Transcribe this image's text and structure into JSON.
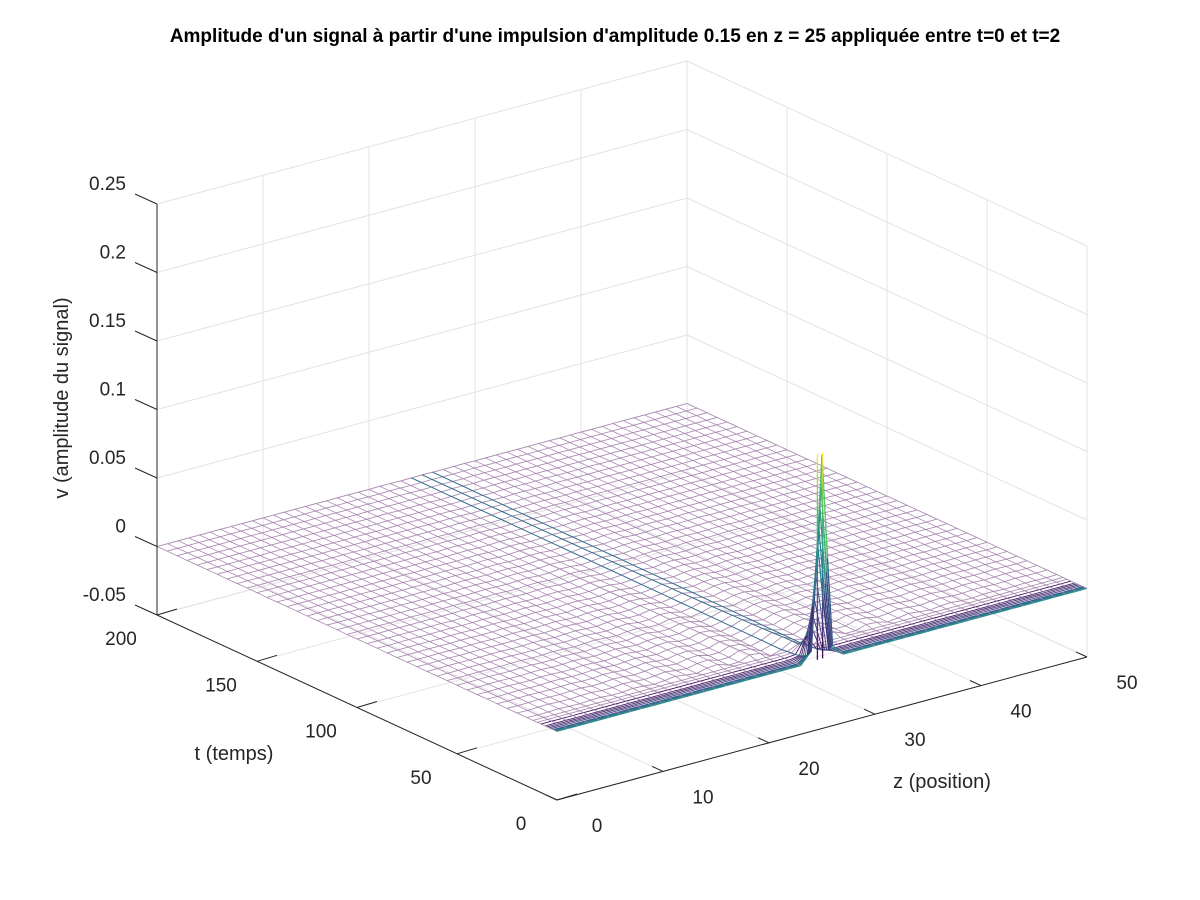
{
  "chart_data": {
    "type": "surface-mesh",
    "title": "Amplitude d'un signal à partir d'une impulsion d'amplitude 0.15 en z = 25 appliquée entre t=0 et t=2",
    "xlabel": "z (position)",
    "ylabel": "t (temps)",
    "zlabel": "v (amplitude du signal)",
    "xlim": [
      0,
      50
    ],
    "ylim": [
      0,
      200
    ],
    "zlim": [
      -0.05,
      0.25
    ],
    "xticks": [
      0,
      10,
      20,
      30,
      40,
      50
    ],
    "yticks": [
      0,
      50,
      100,
      150,
      200
    ],
    "zticks": [
      -0.05,
      0,
      0.05,
      0.1,
      0.15,
      0.2,
      0.25
    ],
    "xtick_labels": [
      "0",
      "10",
      "20",
      "30",
      "40",
      "50"
    ],
    "ytick_labels": [
      "0",
      "50",
      "100",
      "150",
      "200"
    ],
    "ztick_labels": [
      "-0.05",
      "0",
      "0.05",
      "0.1",
      "0.15",
      "0.2",
      "0.25"
    ],
    "grid": true,
    "colormap": "viridis",
    "colormap_stops": [
      "#440154",
      "#3b528b",
      "#21918c",
      "#5ec962",
      "#fde725"
    ],
    "pulse": {
      "z": 25,
      "t_start": 0,
      "t_end": 2,
      "amplitude": 0.15
    },
    "surface_peak": {
      "z": 25,
      "t": 1,
      "v": 0.15
    },
    "mesh_z_points": 51,
    "mesh_t_step": 5,
    "baseline_v": 0
  }
}
